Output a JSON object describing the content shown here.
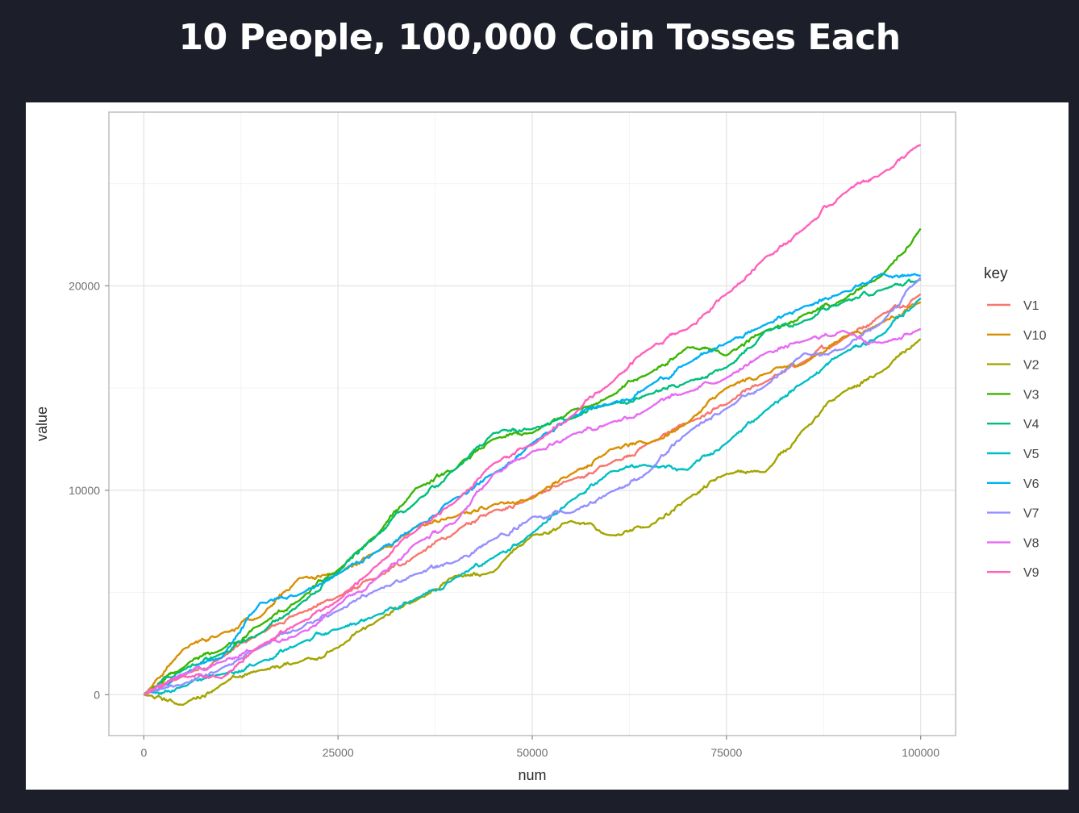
{
  "slide": {
    "title": "10 People, 100,000 Coin Tosses Each"
  },
  "chart_data": {
    "type": "line",
    "title": "",
    "xlabel": "num",
    "ylabel": "value",
    "xlim": [
      -4500,
      104500
    ],
    "ylim": [
      -2000,
      28500
    ],
    "x_ticks": [
      0,
      25000,
      50000,
      75000,
      100000
    ],
    "x_tick_labels": [
      "0",
      "25000",
      "50000",
      "75000",
      "100000"
    ],
    "y_ticks": [
      0,
      10000,
      20000
    ],
    "y_tick_labels": [
      "0",
      "10000",
      "20000"
    ],
    "x_minor_ticks": [
      12500,
      37500,
      62500,
      87500
    ],
    "y_minor_ticks": [
      5000,
      15000,
      25000
    ],
    "grid": true,
    "legend": {
      "title": "key",
      "placement": "right"
    },
    "x": [
      0,
      5000,
      10000,
      15000,
      20000,
      25000,
      30000,
      35000,
      40000,
      45000,
      50000,
      55000,
      60000,
      65000,
      70000,
      75000,
      80000,
      85000,
      90000,
      95000,
      100000
    ],
    "series": [
      {
        "name": "V1",
        "color": "#F8766D",
        "values": [
          0,
          900,
          1800,
          3000,
          4000,
          4800,
          5700,
          6800,
          7900,
          9000,
          9700,
          10500,
          11300,
          12300,
          13300,
          14200,
          15300,
          16300,
          17400,
          18600,
          19600
        ]
      },
      {
        "name": "V10",
        "color": "#D89000",
        "values": [
          0,
          2200,
          3000,
          3800,
          5700,
          5900,
          7000,
          8200,
          8700,
          9300,
          9600,
          10800,
          12000,
          12300,
          13300,
          15000,
          15700,
          16200,
          17500,
          18200,
          19200
        ]
      },
      {
        "name": "V2",
        "color": "#A3A500",
        "values": [
          0,
          -500,
          500,
          1200,
          1600,
          2300,
          3600,
          4600,
          5800,
          6000,
          7800,
          8500,
          7800,
          8200,
          9600,
          10800,
          10900,
          13000,
          14800,
          15800,
          17400
        ]
      },
      {
        "name": "V3",
        "color": "#39B600",
        "values": [
          0,
          1300,
          2200,
          3400,
          4600,
          6100,
          7800,
          10100,
          11000,
          12500,
          12800,
          13900,
          14600,
          15700,
          17000,
          16600,
          17800,
          18600,
          19300,
          20500,
          22800
        ]
      },
      {
        "name": "V4",
        "color": "#00BF7D",
        "values": [
          0,
          1200,
          2000,
          3000,
          4400,
          6000,
          7800,
          9400,
          11000,
          12800,
          13000,
          13500,
          14200,
          14700,
          15300,
          16000,
          17800,
          18300,
          19200,
          19800,
          20300
        ]
      },
      {
        "name": "V5",
        "color": "#00BFC4",
        "values": [
          0,
          400,
          1000,
          1600,
          2500,
          3200,
          3900,
          4700,
          5700,
          6700,
          7900,
          9500,
          10900,
          11200,
          11000,
          12300,
          13900,
          15300,
          16700,
          17600,
          19400
        ]
      },
      {
        "name": "V6",
        "color": "#00B0F6",
        "values": [
          0,
          1000,
          1800,
          4500,
          4900,
          5900,
          7000,
          8200,
          9600,
          10800,
          12300,
          13600,
          14200,
          15100,
          16200,
          17200,
          18100,
          19000,
          19700,
          20600,
          20500
        ]
      },
      {
        "name": "V7",
        "color": "#9590FF",
        "values": [
          0,
          500,
          1300,
          2300,
          3200,
          4100,
          5100,
          5900,
          6500,
          7600,
          8700,
          8900,
          9900,
          10900,
          12800,
          14000,
          15100,
          16700,
          16900,
          18200,
          20400
        ]
      },
      {
        "name": "V8",
        "color": "#E76BF3",
        "values": [
          0,
          1000,
          1600,
          2400,
          3000,
          4400,
          5700,
          7400,
          8400,
          10800,
          11900,
          12700,
          13300,
          14000,
          14800,
          15500,
          16700,
          17300,
          17800,
          17200,
          17900
        ]
      },
      {
        "name": "V9",
        "color": "#FF62BC",
        "values": [
          0,
          900,
          800,
          2400,
          3500,
          4600,
          6300,
          8000,
          9400,
          11300,
          12200,
          13600,
          15200,
          16900,
          17900,
          19600,
          21400,
          22800,
          24500,
          25500,
          26900
        ]
      }
    ]
  }
}
